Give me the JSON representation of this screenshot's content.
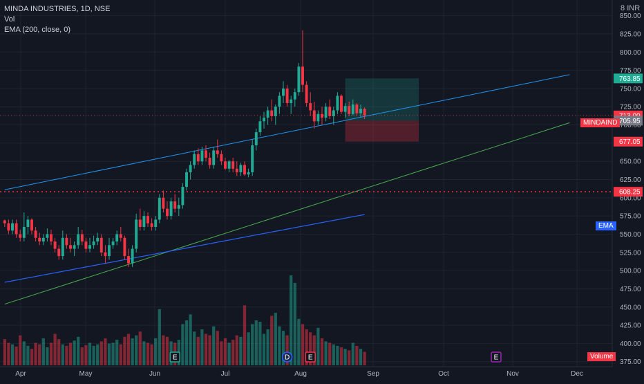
{
  "header": {
    "symbol_line": "MINDA INDUSTRIES, 1D, NSE",
    "vol_label": "Vol",
    "ema_label": "EMA (200, close, 0)",
    "currency": "INR",
    "currency_prefix": "8"
  },
  "tags": {
    "symbol_badge": "MINDAIND",
    "ema_badge": "EMA",
    "volume_badge": "Volume",
    "colors": {
      "green": "#22ab94",
      "red": "#f23645",
      "blue": "#2962ff",
      "gray": "#787b86"
    }
  },
  "chart_data": {
    "type": "candlestick",
    "x_axis": {
      "labels": [
        "Apr",
        "May",
        "Jun",
        "Jul",
        "Aug",
        "Sep",
        "Oct",
        "Nov",
        "Dec"
      ]
    },
    "y_axis": {
      "range": [
        370,
        862
      ],
      "ticks": [
        "850.00",
        "825.00",
        "800.00",
        "775.00",
        "750.00",
        "725.00",
        "700.00",
        "675.00",
        "650.00",
        "625.00",
        "600.00",
        "575.00",
        "550.00",
        "525.00",
        "500.00",
        "475.00",
        "450.00",
        "425.00",
        "400.00",
        "375.00"
      ]
    },
    "price_tags": [
      {
        "label": "763.85",
        "value": 763.85,
        "color": "#22ab94"
      },
      {
        "label": "713.00",
        "value": 713.0,
        "color": "#f23645"
      },
      {
        "label": "705.95",
        "value": 705.95,
        "color": "#787b86"
      },
      {
        "label": "677.05",
        "value": 677.05,
        "color": "#f23645"
      },
      {
        "label": "608.25",
        "value": 608.25,
        "color": "#f23645"
      }
    ],
    "horizontal_line": {
      "value": 608.25,
      "style": "dotted",
      "color": "#f23645"
    },
    "current_price_line": {
      "value": 713.0,
      "style": "dotted",
      "color": "#f23645"
    },
    "trendlines": [
      {
        "name": "upper trendline",
        "color": "#2196f3",
        "from": [
          0,
          611
        ],
        "to": [
          146,
          769
        ]
      },
      {
        "name": "lower trendline",
        "color": "#4caf50",
        "from": [
          0,
          454
        ],
        "to": [
          146,
          703
        ]
      }
    ],
    "position_box": {
      "x_start": 88,
      "x_end": 107,
      "entry": 705.95,
      "target": 763.85,
      "stop": 677.05
    },
    "events": [
      {
        "label": "E",
        "x": 44,
        "type": "earnings"
      },
      {
        "label": "D",
        "x": 73,
        "type": "dividend"
      },
      {
        "label": "E",
        "x": 79,
        "type": "earnings"
      },
      {
        "label": "E",
        "x": 127,
        "type": "earnings"
      }
    ],
    "series": [
      {
        "name": "MINDAIND",
        "ohlc": [
          [
            569,
            570,
            560,
            565
          ],
          [
            565,
            570,
            550,
            555
          ],
          [
            555,
            570,
            550,
            565
          ],
          [
            565,
            570,
            545,
            550
          ],
          [
            550,
            556,
            540,
            545
          ],
          [
            545,
            580,
            540,
            560
          ],
          [
            560,
            575,
            550,
            570
          ],
          [
            570,
            572,
            550,
            555
          ],
          [
            555,
            560,
            540,
            545
          ],
          [
            545,
            552,
            535,
            540
          ],
          [
            540,
            550,
            535,
            545
          ],
          [
            545,
            558,
            540,
            550
          ],
          [
            550,
            556,
            535,
            540
          ],
          [
            540,
            545,
            525,
            530
          ],
          [
            530,
            535,
            515,
            520
          ],
          [
            520,
            555,
            515,
            545
          ],
          [
            545,
            550,
            530,
            535
          ],
          [
            535,
            545,
            525,
            530
          ],
          [
            530,
            540,
            520,
            535
          ],
          [
            535,
            560,
            530,
            550
          ],
          [
            550,
            556,
            535,
            540
          ],
          [
            540,
            545,
            525,
            530
          ],
          [
            530,
            545,
            525,
            535
          ],
          [
            535,
            548,
            530,
            540
          ],
          [
            540,
            552,
            535,
            545
          ],
          [
            545,
            550,
            520,
            525
          ],
          [
            525,
            535,
            510,
            520
          ],
          [
            520,
            545,
            515,
            535
          ],
          [
            535,
            545,
            530,
            540
          ],
          [
            540,
            555,
            535,
            550
          ],
          [
            550,
            560,
            540,
            545
          ],
          [
            545,
            548,
            515,
            520
          ],
          [
            520,
            530,
            505,
            510
          ],
          [
            510,
            535,
            505,
            530
          ],
          [
            530,
            578,
            525,
            570
          ],
          [
            570,
            585,
            555,
            560
          ],
          [
            560,
            582,
            555,
            575
          ],
          [
            575,
            580,
            560,
            565
          ],
          [
            565,
            572,
            555,
            560
          ],
          [
            560,
            575,
            555,
            570
          ],
          [
            570,
            605,
            565,
            600
          ],
          [
            600,
            610,
            580,
            585
          ],
          [
            585,
            595,
            570,
            575
          ],
          [
            575,
            600,
            570,
            595
          ],
          [
            595,
            605,
            580,
            585
          ],
          [
            585,
            600,
            575,
            590
          ],
          [
            590,
            620,
            585,
            615
          ],
          [
            615,
            640,
            610,
            635
          ],
          [
            635,
            650,
            625,
            645
          ],
          [
            645,
            665,
            640,
            660
          ],
          [
            660,
            668,
            645,
            650
          ],
          [
            650,
            670,
            645,
            665
          ],
          [
            665,
            672,
            650,
            655
          ],
          [
            655,
            662,
            640,
            645
          ],
          [
            645,
            670,
            640,
            665
          ],
          [
            665,
            680,
            655,
            660
          ],
          [
            660,
            665,
            645,
            650
          ],
          [
            650,
            655,
            638,
            640
          ],
          [
            640,
            652,
            635,
            650
          ],
          [
            650,
            655,
            635,
            640
          ],
          [
            640,
            650,
            630,
            635
          ],
          [
            635,
            648,
            630,
            645
          ],
          [
            645,
            650,
            630,
            632
          ],
          [
            632,
            640,
            628,
            635
          ],
          [
            635,
            680,
            630,
            672
          ],
          [
            672,
            695,
            665,
            690
          ],
          [
            690,
            712,
            685,
            705
          ],
          [
            705,
            718,
            695,
            710
          ],
          [
            710,
            725,
            700,
            720
          ],
          [
            720,
            735,
            705,
            712
          ],
          [
            712,
            728,
            700,
            725
          ],
          [
            725,
            745,
            715,
            740
          ],
          [
            740,
            760,
            730,
            750
          ],
          [
            750,
            755,
            725,
            730
          ],
          [
            730,
            740,
            715,
            735
          ],
          [
            735,
            750,
            725,
            745
          ],
          [
            745,
            785,
            740,
            780
          ],
          [
            780,
            830,
            745,
            755
          ],
          [
            755,
            760,
            725,
            730
          ],
          [
            730,
            745,
            712,
            720
          ],
          [
            720,
            732,
            695,
            705
          ],
          [
            705,
            720,
            700,
            715
          ],
          [
            715,
            725,
            700,
            710
          ],
          [
            710,
            730,
            705,
            725
          ],
          [
            725,
            735,
            708,
            712
          ],
          [
            712,
            725,
            700,
            720
          ],
          [
            720,
            745,
            715,
            740
          ],
          [
            740,
            742,
            715,
            718
          ],
          [
            718,
            730,
            710,
            726
          ],
          [
            726,
            732,
            712,
            715
          ],
          [
            715,
            735,
            713,
            728
          ],
          [
            728,
            730,
            712,
            716
          ],
          [
            716,
            728,
            710,
            722
          ],
          [
            722,
            724,
            708,
            713
          ]
        ],
        "volume": [
          35,
          30,
          28,
          25,
          40,
          32,
          26,
          22,
          30,
          28,
          36,
          24,
          30,
          42,
          35,
          28,
          26,
          30,
          33,
          38,
          24,
          27,
          30,
          26,
          28,
          32,
          36,
          29,
          30,
          34,
          28,
          38,
          42,
          36,
          40,
          45,
          32,
          30,
          28,
          36,
          75,
          40,
          38,
          32,
          30,
          34,
          55,
          60,
          68,
          45,
          38,
          48,
          42,
          40,
          52,
          46,
          32,
          36,
          30,
          34,
          40,
          38,
          80,
          44,
          55,
          60,
          58,
          42,
          48,
          66,
          70,
          52,
          46,
          40,
          120,
          110,
          62,
          55,
          48,
          44,
          40,
          50,
          36,
          32,
          30,
          28,
          26,
          24,
          22,
          20,
          30,
          26,
          22,
          18
        ]
      },
      {
        "name": "EMA (200, close, 0)",
        "values": [
          484,
          485,
          486,
          487,
          488,
          489,
          490,
          491,
          492,
          493,
          494,
          495,
          496,
          497,
          498,
          499,
          500,
          501,
          502,
          503,
          504,
          505,
          506,
          507,
          508,
          509,
          510,
          511,
          512,
          513,
          514,
          515,
          516,
          517,
          518,
          519,
          520,
          521,
          522,
          523,
          524,
          525,
          526,
          527,
          528,
          529,
          530,
          531,
          532,
          533,
          534,
          535,
          536,
          537,
          538,
          539,
          540,
          541,
          542,
          543,
          544,
          545,
          546,
          547,
          548,
          549,
          550,
          551,
          552,
          553,
          554,
          555,
          556,
          557,
          558,
          559,
          560,
          561,
          562,
          563,
          564,
          565,
          566,
          567,
          568,
          569,
          570,
          571,
          572,
          573,
          574,
          575,
          576,
          577
        ]
      }
    ]
  }
}
